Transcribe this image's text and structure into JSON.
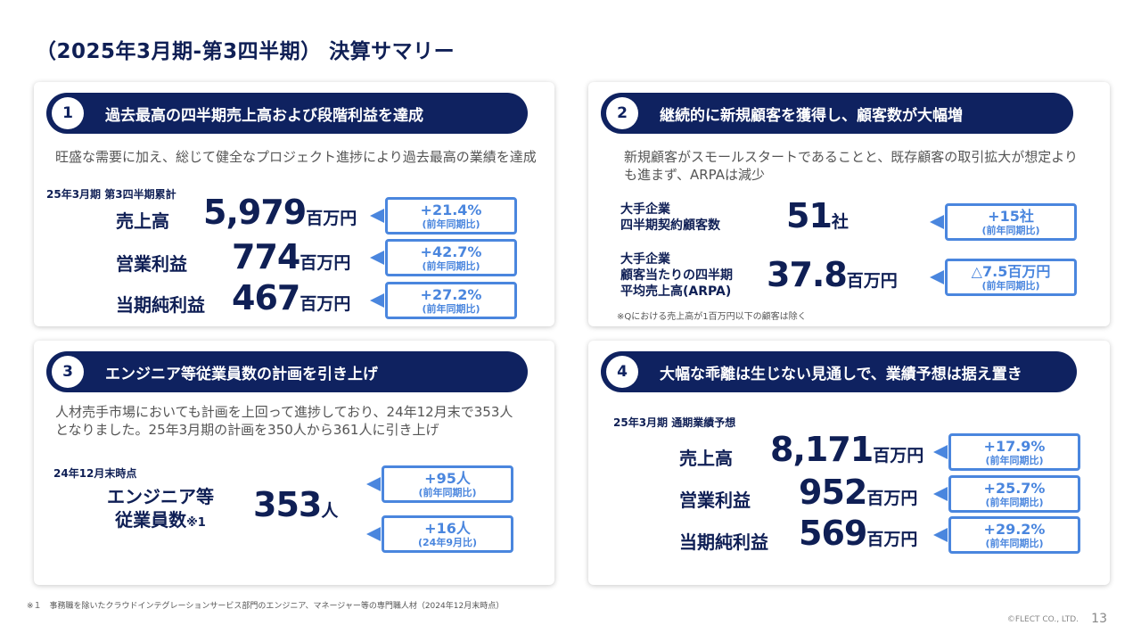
{
  "title": "（2025年3月期-第3四半期） 決算サマリー",
  "section1": {
    "num": "1",
    "heading": "過去最高の四半期売上高および段階利益を達成",
    "desc": "旺盛な需要に加え、総じて健全なプロジェクト進捗により過去最高の業績を達成",
    "period": "25年3月期 第3四半期累計",
    "rows": [
      {
        "label": "売上高",
        "value": "5,979",
        "unit": "百万円",
        "change": "+21.4%",
        "sub": "(前年同期比)"
      },
      {
        "label": "営業利益",
        "value": "774",
        "unit": "百万円",
        "change": "+42.7%",
        "sub": "(前年同期比)"
      },
      {
        "label": "当期純利益",
        "value": "467",
        "unit": "百万円",
        "change": "+27.2%",
        "sub": "(前年同期比)"
      }
    ]
  },
  "section2": {
    "num": "2",
    "heading": "継続的に新規顧客を獲得し、顧客数が大幅増",
    "desc": "新規顧客がスモールスタートであることと、既存顧客の取引拡大が想定よりも進まず、ARPAは減少",
    "rows": [
      {
        "label1": "大手企業",
        "label2": "四半期契約顧客数",
        "label3": "",
        "value": "51",
        "unit": "社",
        "change": "+15社",
        "sub": "(前年同期比)"
      },
      {
        "label1": "大手企業",
        "label2": "顧客当たりの四半期",
        "label3": "平均売上高(ARPA)",
        "value": "37.8",
        "unit": "百万円",
        "change": "△7.5百万円",
        "sub": "(前年同期比)"
      }
    ],
    "note": "※Qにおける売上高が1百万円以下の顧客は除く"
  },
  "section3": {
    "num": "3",
    "heading": "エンジニア等従業員数の計画を引き上げ",
    "desc": "人材売手市場においても計画を上回って進捗しており、24年12月末で353人となりました。25年3月期の計画を350人から361人に引き上げ",
    "period": "24年12月末時点",
    "label1": "エンジニア等",
    "label2": "従業員数",
    "label_note": "※1",
    "value": "353",
    "unit": "人",
    "badges": [
      {
        "change": "+95人",
        "sub": "(前年同期比)"
      },
      {
        "change": "+16人",
        "sub": "(24年9月比)"
      }
    ]
  },
  "section4": {
    "num": "4",
    "heading": "大幅な乖離は生じない見通しで、業績予想は据え置き",
    "period": "25年3月期 通期業績予想",
    "rows": [
      {
        "label": "売上高",
        "value": "8,171",
        "unit": "百万円",
        "change": "+17.9%",
        "sub": "(前年同期比)"
      },
      {
        "label": "営業利益",
        "value": "952",
        "unit": "百万円",
        "change": "+25.7%",
        "sub": "(前年同期比)"
      },
      {
        "label": "当期純利益",
        "value": "569",
        "unit": "百万円",
        "change": "+29.2%",
        "sub": "(前年同期比)"
      }
    ]
  },
  "footnote": "※１　事務職を除いたクラウドインテグレーションサービス部門のエンジニア、マネージャー等の専門職人材（2024年12月末時点）",
  "copyright": "©FLECT CO., LTD.",
  "page_number": "13",
  "colors": {
    "navy": "#0f2260",
    "accent": "#4a86de"
  }
}
